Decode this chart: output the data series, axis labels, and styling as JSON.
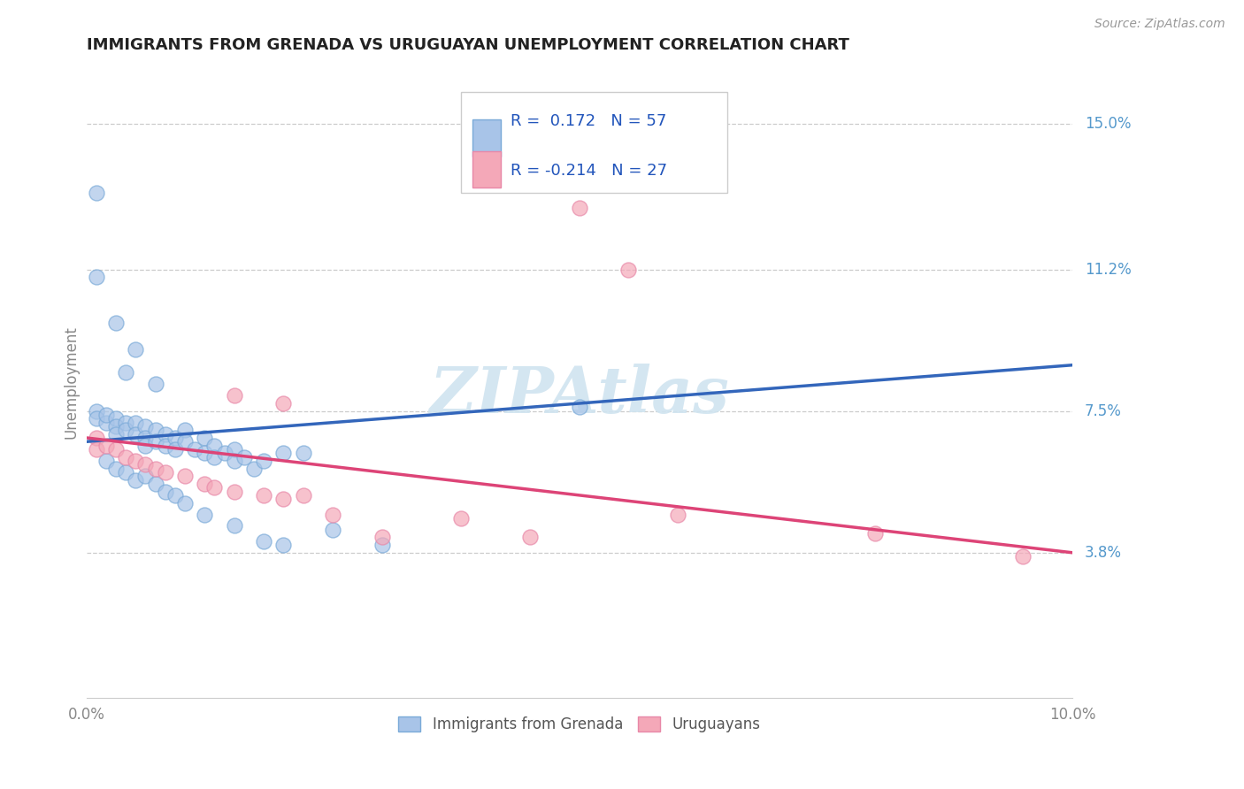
{
  "title": "IMMIGRANTS FROM GRENADA VS URUGUAYAN UNEMPLOYMENT CORRELATION CHART",
  "source": "Source: ZipAtlas.com",
  "ylabel": "Unemployment",
  "ytick_labels": [
    "15.0%",
    "11.2%",
    "7.5%",
    "3.8%"
  ],
  "ytick_values": [
    0.15,
    0.112,
    0.075,
    0.038
  ],
  "xlim": [
    0.0,
    0.1
  ],
  "ylim": [
    0.0,
    0.165
  ],
  "r_blue": "0.172",
  "n_blue": "57",
  "r_pink": "-0.214",
  "n_pink": "27",
  "legend_label_blue": "Immigrants from Grenada",
  "legend_label_pink": "Uruguayans",
  "blue_color": "#a8c4e8",
  "pink_color": "#f4a8b8",
  "blue_edge_color": "#7aaad8",
  "pink_edge_color": "#e888a8",
  "background_color": "#ffffff",
  "grid_color": "#cccccc",
  "title_color": "#333333",
  "axis_label_color": "#888888",
  "blue_line_color": "#3366bb",
  "pink_line_color": "#dd4477",
  "trend_dashed_color": "#99bbcc",
  "watermark_color": "#d0e4f0",
  "blue_points": [
    [
      0.001,
      0.132
    ],
    [
      0.001,
      0.11
    ],
    [
      0.003,
      0.098
    ],
    [
      0.005,
      0.091
    ],
    [
      0.004,
      0.085
    ],
    [
      0.007,
      0.082
    ],
    [
      0.001,
      0.075
    ],
    [
      0.001,
      0.073
    ],
    [
      0.002,
      0.072
    ],
    [
      0.002,
      0.074
    ],
    [
      0.003,
      0.073
    ],
    [
      0.003,
      0.071
    ],
    [
      0.003,
      0.069
    ],
    [
      0.004,
      0.072
    ],
    [
      0.004,
      0.07
    ],
    [
      0.005,
      0.072
    ],
    [
      0.005,
      0.069
    ],
    [
      0.006,
      0.071
    ],
    [
      0.006,
      0.068
    ],
    [
      0.006,
      0.066
    ],
    [
      0.007,
      0.07
    ],
    [
      0.007,
      0.067
    ],
    [
      0.008,
      0.069
    ],
    [
      0.008,
      0.066
    ],
    [
      0.009,
      0.068
    ],
    [
      0.009,
      0.065
    ],
    [
      0.01,
      0.07
    ],
    [
      0.01,
      0.067
    ],
    [
      0.011,
      0.065
    ],
    [
      0.012,
      0.068
    ],
    [
      0.012,
      0.064
    ],
    [
      0.013,
      0.066
    ],
    [
      0.013,
      0.063
    ],
    [
      0.014,
      0.064
    ],
    [
      0.015,
      0.065
    ],
    [
      0.015,
      0.062
    ],
    [
      0.016,
      0.063
    ],
    [
      0.017,
      0.06
    ],
    [
      0.018,
      0.062
    ],
    [
      0.02,
      0.064
    ],
    [
      0.022,
      0.064
    ],
    [
      0.002,
      0.062
    ],
    [
      0.003,
      0.06
    ],
    [
      0.004,
      0.059
    ],
    [
      0.005,
      0.057
    ],
    [
      0.006,
      0.058
    ],
    [
      0.007,
      0.056
    ],
    [
      0.008,
      0.054
    ],
    [
      0.009,
      0.053
    ],
    [
      0.01,
      0.051
    ],
    [
      0.012,
      0.048
    ],
    [
      0.015,
      0.045
    ],
    [
      0.018,
      0.041
    ],
    [
      0.02,
      0.04
    ],
    [
      0.025,
      0.044
    ],
    [
      0.03,
      0.04
    ],
    [
      0.05,
      0.076
    ]
  ],
  "pink_points": [
    [
      0.05,
      0.128
    ],
    [
      0.055,
      0.112
    ],
    [
      0.015,
      0.079
    ],
    [
      0.02,
      0.077
    ],
    [
      0.001,
      0.068
    ],
    [
      0.001,
      0.065
    ],
    [
      0.002,
      0.066
    ],
    [
      0.003,
      0.065
    ],
    [
      0.004,
      0.063
    ],
    [
      0.005,
      0.062
    ],
    [
      0.006,
      0.061
    ],
    [
      0.007,
      0.06
    ],
    [
      0.008,
      0.059
    ],
    [
      0.01,
      0.058
    ],
    [
      0.012,
      0.056
    ],
    [
      0.013,
      0.055
    ],
    [
      0.015,
      0.054
    ],
    [
      0.018,
      0.053
    ],
    [
      0.02,
      0.052
    ],
    [
      0.022,
      0.053
    ],
    [
      0.025,
      0.048
    ],
    [
      0.03,
      0.042
    ],
    [
      0.038,
      0.047
    ],
    [
      0.045,
      0.042
    ],
    [
      0.06,
      0.048
    ],
    [
      0.08,
      0.043
    ],
    [
      0.095,
      0.037
    ]
  ]
}
